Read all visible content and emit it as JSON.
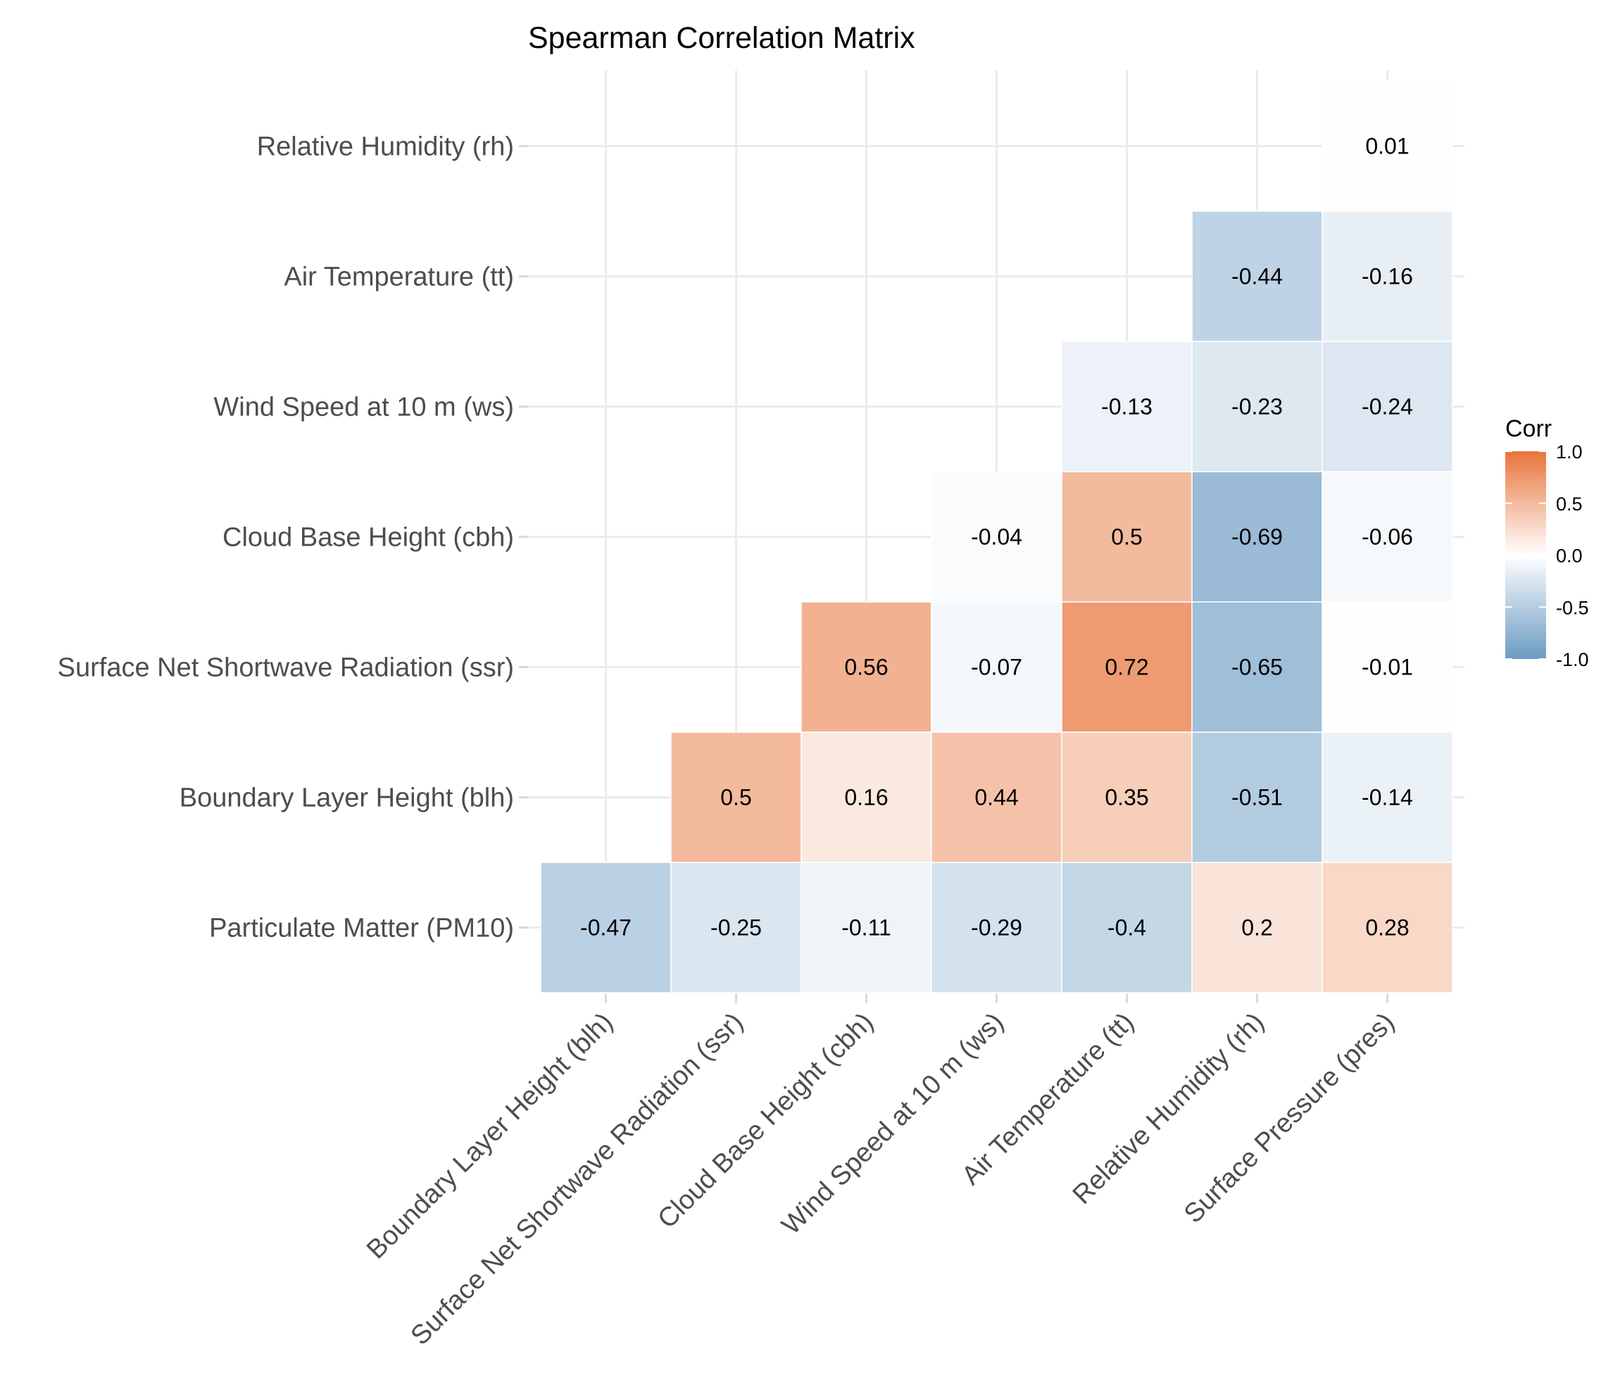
{
  "chart_data": {
    "type": "heatmap",
    "title": "Spearman Correlation Matrix",
    "xlabel": "",
    "ylabel": "",
    "x_categories": [
      "Boundary Layer Height (blh)",
      "Surface Net Shortwave Radiation (ssr)",
      "Cloud Base Height (cbh)",
      "Wind Speed at 10 m (ws)",
      "Air Temperature (tt)",
      "Relative Humidity (rh)",
      "Surface Pressure (pres)"
    ],
    "y_categories": [
      "Relative Humidity (rh)",
      "Air Temperature (tt)",
      "Wind Speed at 10 m (ws)",
      "Cloud Base Height (cbh)",
      "Surface Net Shortwave Radiation (ssr)",
      "Boundary Layer Height (blh)",
      "Particulate Matter (PM10)"
    ],
    "cells": [
      {
        "x": 6,
        "y": 0,
        "value": 0.01,
        "label": "0.01"
      },
      {
        "x": 5,
        "y": 1,
        "value": -0.44,
        "label": "-0.44"
      },
      {
        "x": 6,
        "y": 1,
        "value": -0.16,
        "label": "-0.16"
      },
      {
        "x": 4,
        "y": 2,
        "value": -0.13,
        "label": "-0.13"
      },
      {
        "x": 5,
        "y": 2,
        "value": -0.23,
        "label": "-0.23"
      },
      {
        "x": 6,
        "y": 2,
        "value": -0.24,
        "label": "-0.24"
      },
      {
        "x": 3,
        "y": 3,
        "value": -0.04,
        "label": "-0.04"
      },
      {
        "x": 4,
        "y": 3,
        "value": 0.5,
        "label": "0.5"
      },
      {
        "x": 5,
        "y": 3,
        "value": -0.69,
        "label": "-0.69"
      },
      {
        "x": 6,
        "y": 3,
        "value": -0.06,
        "label": "-0.06"
      },
      {
        "x": 2,
        "y": 4,
        "value": 0.56,
        "label": "0.56"
      },
      {
        "x": 3,
        "y": 4,
        "value": -0.07,
        "label": "-0.07"
      },
      {
        "x": 4,
        "y": 4,
        "value": 0.72,
        "label": "0.72"
      },
      {
        "x": 5,
        "y": 4,
        "value": -0.65,
        "label": "-0.65"
      },
      {
        "x": 6,
        "y": 4,
        "value": -0.01,
        "label": "-0.01"
      },
      {
        "x": 1,
        "y": 5,
        "value": 0.5,
        "label": "0.5"
      },
      {
        "x": 2,
        "y": 5,
        "value": 0.16,
        "label": "0.16"
      },
      {
        "x": 3,
        "y": 5,
        "value": 0.44,
        "label": "0.44"
      },
      {
        "x": 4,
        "y": 5,
        "value": 0.35,
        "label": "0.35"
      },
      {
        "x": 5,
        "y": 5,
        "value": -0.51,
        "label": "-0.51"
      },
      {
        "x": 6,
        "y": 5,
        "value": -0.14,
        "label": "-0.14"
      },
      {
        "x": 0,
        "y": 6,
        "value": -0.47,
        "label": "-0.47"
      },
      {
        "x": 1,
        "y": 6,
        "value": -0.25,
        "label": "-0.25"
      },
      {
        "x": 2,
        "y": 6,
        "value": -0.11,
        "label": "-0.11"
      },
      {
        "x": 3,
        "y": 6,
        "value": -0.29,
        "label": "-0.29"
      },
      {
        "x": 4,
        "y": 6,
        "value": -0.4,
        "label": "-0.4"
      },
      {
        "x": 5,
        "y": 6,
        "value": 0.2,
        "label": "0.2"
      },
      {
        "x": 6,
        "y": 6,
        "value": 0.28,
        "label": "0.28"
      }
    ],
    "legend": {
      "title": "Corr",
      "position": "right",
      "range": [
        -1,
        1
      ],
      "ticks": [
        1.0,
        0.5,
        0.0,
        -0.5,
        -1.0
      ],
      "tick_labels": [
        "1.0",
        "0.5",
        "0.0",
        "-0.5",
        "-1.0"
      ]
    },
    "colors": {
      "high": "#E8743B",
      "mid": "#FFFFFF",
      "low": "#6C9BC3",
      "grid": "#EBEBEB",
      "axis_text": "#4D4D4D"
    },
    "grid": true
  }
}
